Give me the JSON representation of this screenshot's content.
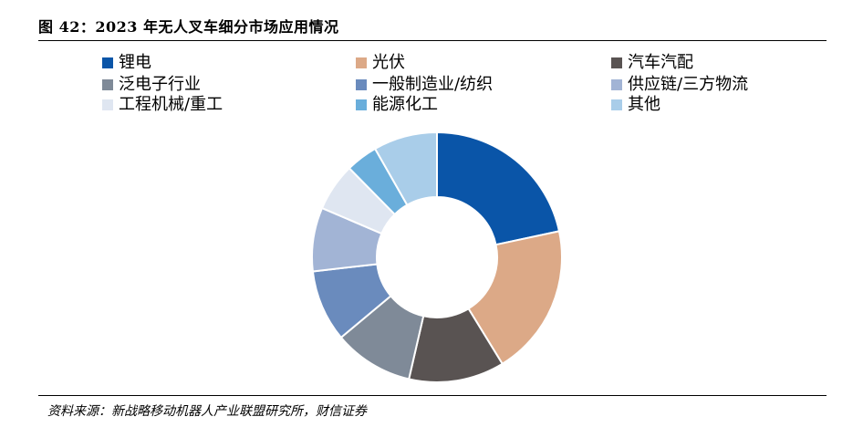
{
  "figure": {
    "title": "图 42：2023 年无人叉车细分市场应用情况",
    "source": "资料来源：新战略移动机器人产业联盟研究所，财信证券"
  },
  "chart_data": {
    "type": "pie",
    "variant": "donut",
    "title": "",
    "legend_position": "top",
    "categories": [
      "锂电",
      "光伏",
      "汽车汽配",
      "泛电子行业",
      "一般制造业/纺织",
      "供应链/三方物流",
      "工程机械/重工",
      "能源化工",
      "其他"
    ],
    "values": [
      21,
      19,
      12,
      10,
      9,
      8,
      6,
      4,
      8
    ],
    "unit": "%",
    "colors": [
      "#0a55a8",
      "#dca987",
      "#595352",
      "#7f8a98",
      "#6a8bbd",
      "#a2b4d5",
      "#dfe6f1",
      "#6aaedb",
      "#a9cde9"
    ]
  }
}
